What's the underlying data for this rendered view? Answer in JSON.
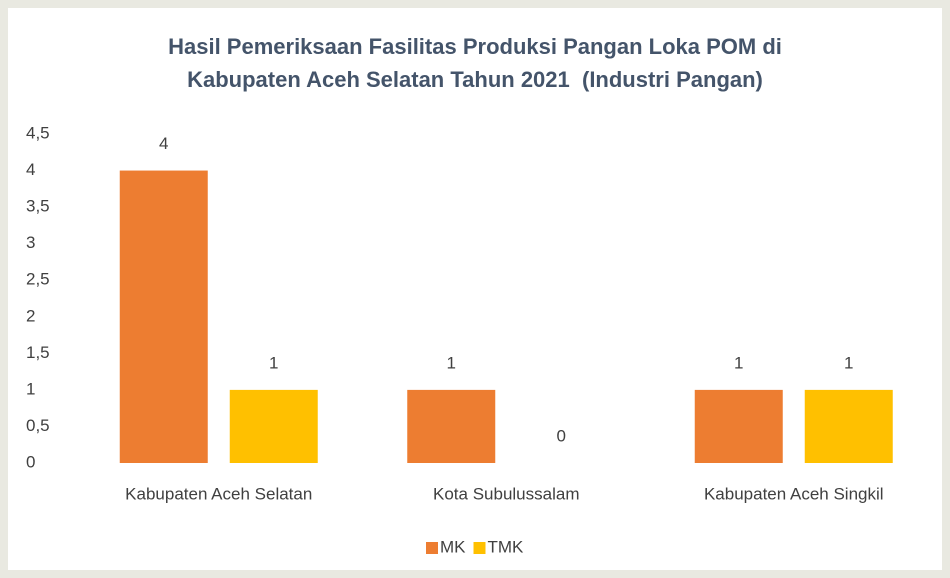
{
  "chart_data": {
    "type": "bar",
    "title": "Hasil Pemeriksaan Fasilitas Produksi Pangan Loka POM di Kabupaten Aceh Selatan Tahun 2021  (Industri Pangan)",
    "categories": [
      "Kabupaten Aceh Selatan",
      "Kota Subulussalam",
      "Kabupaten Aceh Singkil"
    ],
    "series": [
      {
        "name": "MK",
        "color": "#ed7d31",
        "values": [
          4,
          1,
          1
        ]
      },
      {
        "name": "TMK",
        "color": "#ffc000",
        "values": [
          1,
          0,
          1
        ]
      }
    ],
    "ylim": [
      0,
      4.5
    ],
    "yticks": [
      0,
      {
        "value": 0.5,
        "label": "0,5"
      },
      1,
      {
        "value": 1.5,
        "label": "1,5"
      },
      2,
      {
        "value": 2.5,
        "label": "2,5"
      },
      3,
      {
        "value": 3.5,
        "label": "3,5"
      },
      4,
      {
        "value": 4.5,
        "label": "4,5"
      }
    ],
    "grid": false,
    "legend": "bottom"
  }
}
